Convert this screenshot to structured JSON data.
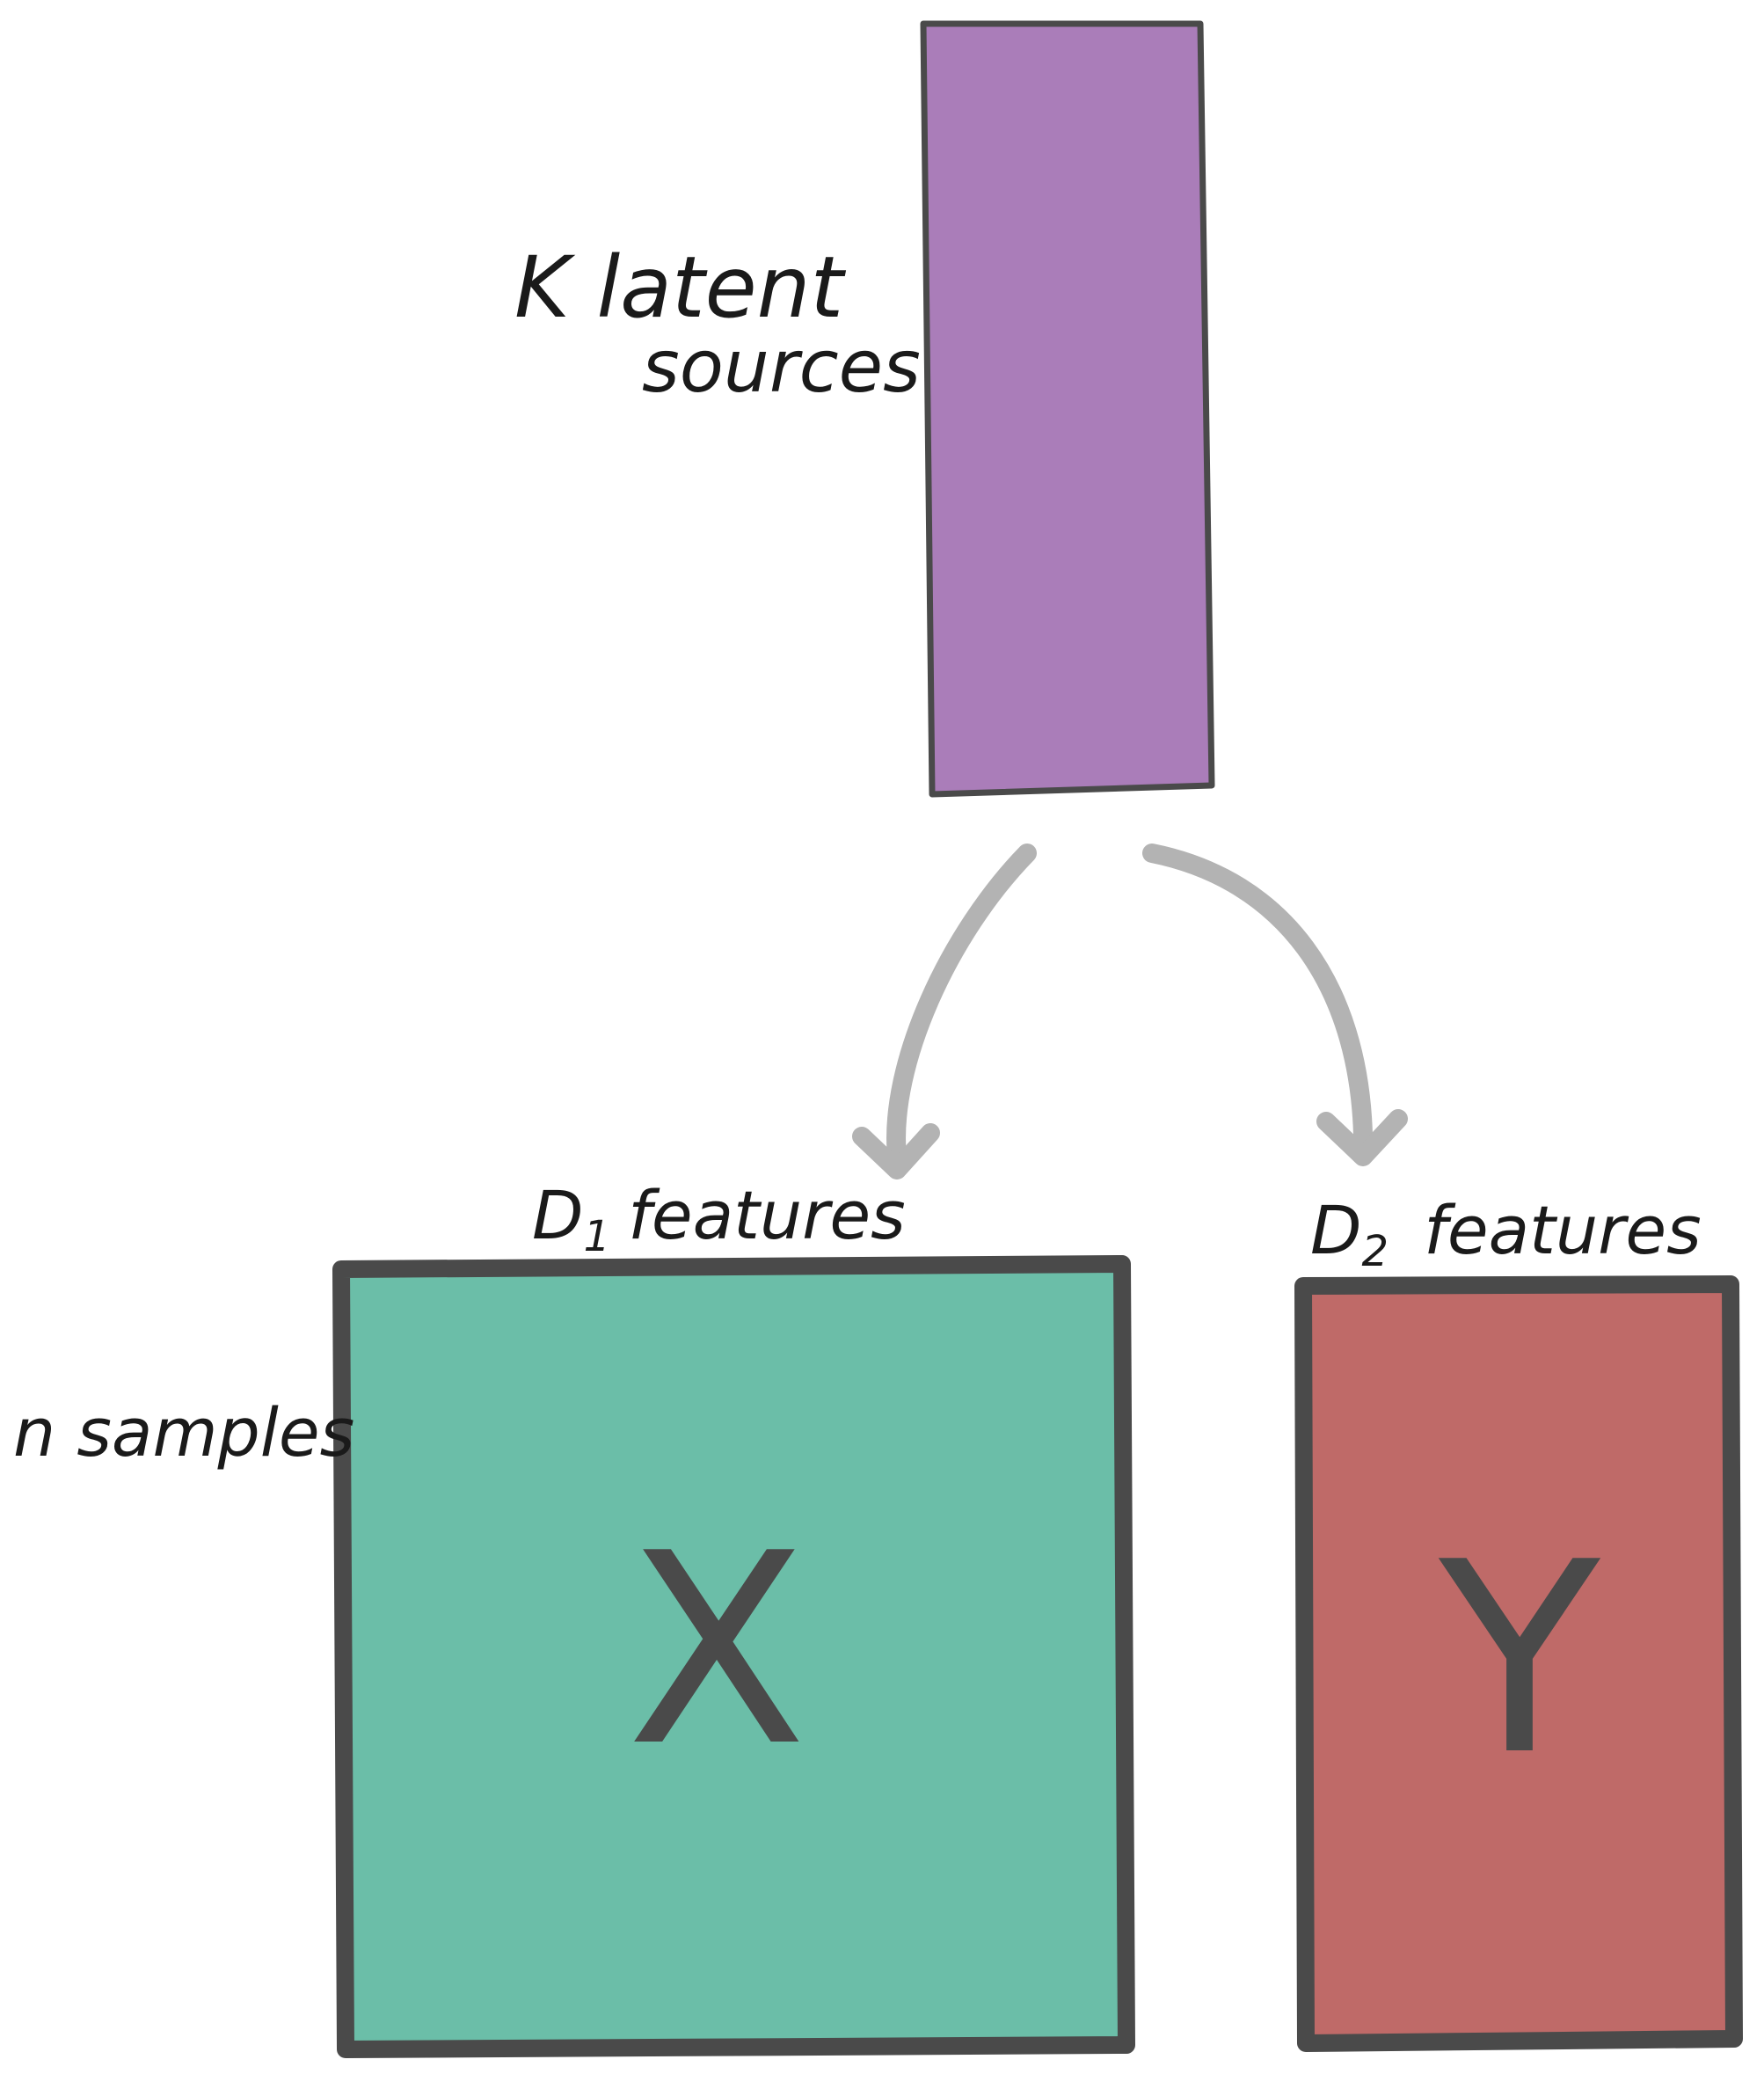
{
  "latent": {
    "label_line1": "K latent",
    "label_line2": "sources",
    "fill": "#AA7DB9"
  },
  "matrix_x": {
    "symbol": "X",
    "top_label_prefix": "D",
    "top_label_sub": "1",
    "top_label_suffix": "features",
    "side_label": "n samples",
    "fill": "#6BBEA8"
  },
  "matrix_y": {
    "symbol": "Y",
    "top_label_prefix": "D",
    "top_label_sub": "2",
    "top_label_suffix": "features",
    "fill": "#BF6A68"
  },
  "colors": {
    "stroke": "#4a4a4a",
    "arrow": "#b3b3b3"
  }
}
